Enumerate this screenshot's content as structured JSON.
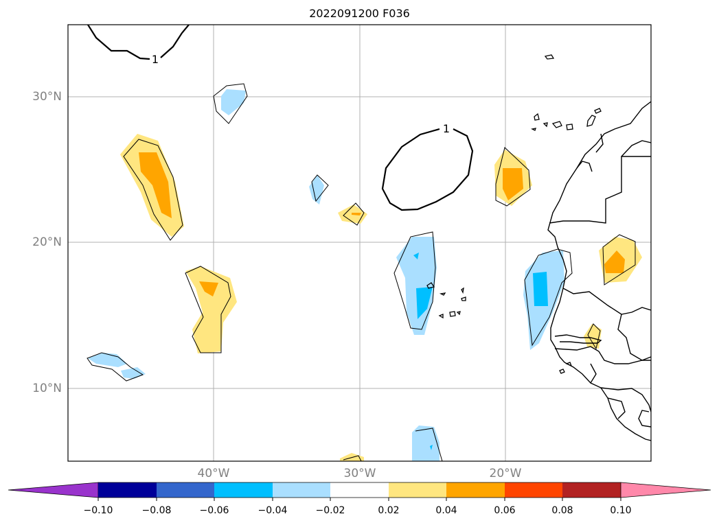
{
  "title": "2022091200 F036",
  "lat_labels": [
    "30°N",
    "20°N",
    "10°N"
  ],
  "lon_labels": [
    "40°W",
    "30°W",
    "20°W"
  ],
  "contour_label": "1",
  "colorbar": {
    "ticks": [
      "−0.10",
      "−0.08",
      "−0.06",
      "−0.04",
      "−0.02",
      "0.02",
      "0.04",
      "0.06",
      "0.08",
      "0.10"
    ],
    "colors": [
      "#9933cc",
      "#000099",
      "#3366cc",
      "#00bfff",
      "#aadfff",
      "#ffffff",
      "#ffe680",
      "#ffa500",
      "#ff4500",
      "#b22222",
      "#ff88aa"
    ]
  }
}
